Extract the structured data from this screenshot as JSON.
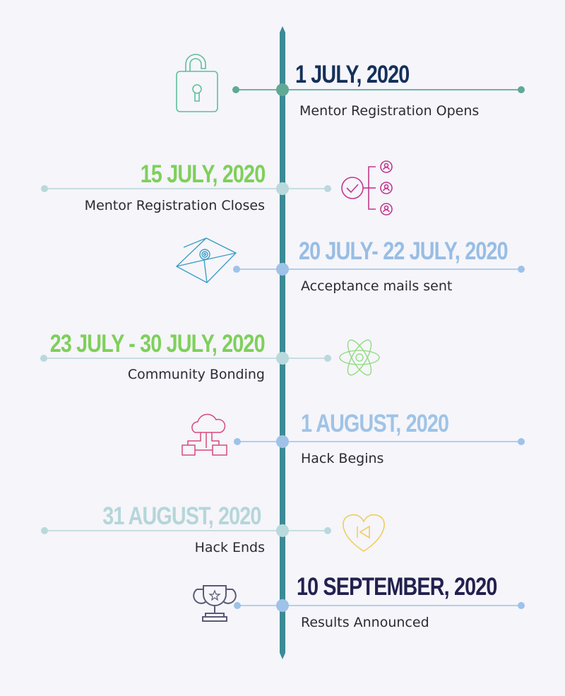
{
  "colors": {
    "axis": "#3b8b97",
    "background": "#f5f5fa"
  },
  "events": [
    {
      "date": "1 JULY, 2020",
      "label": "Mentor Registration Opens",
      "side": "right",
      "date_color": "#15305a",
      "line_color": "#6db3a6",
      "dot_color": "#5fa995",
      "icon": "unlocked-padlock-icon",
      "icon_color": "#5fbf98"
    },
    {
      "date": "15 JULY, 2020",
      "label": "Mentor Registration Closes",
      "side": "left",
      "date_color": "#7ed05a",
      "line_color": "#c8dde2",
      "dot_color": "#b9d9dc",
      "icon": "team-selection-icon",
      "icon_color": "#c2378d"
    },
    {
      "date": "20 JULY- 22 JULY, 2020",
      "label": "Acceptance mails sent",
      "side": "right",
      "date_color": "#98bde4",
      "line_color": "#b2cfea",
      "dot_color": "#9ec2e8",
      "icon": "envelope-icon",
      "icon_color": "#3d9fc4"
    },
    {
      "date": "23 JULY - 30 JULY, 2020",
      "label": "Community Bonding",
      "side": "left",
      "date_color": "#7ed05a",
      "line_color": "#c8dde2",
      "dot_color": "#b9d9dc",
      "icon": "atom-icon",
      "icon_color": "#8dd97a"
    },
    {
      "date": "1 AUGUST, 2020",
      "label": "Hack Begins",
      "side": "right",
      "date_color": "#9fc3e6",
      "line_color": "#b2cfea",
      "dot_color": "#9ec2e8",
      "icon": "cloud-network-icon",
      "icon_color": "#d94a7a"
    },
    {
      "date": "31 AUGUST, 2020",
      "label": "Hack Ends",
      "side": "left",
      "date_color": "#b5d6d9",
      "line_color": "#c8dde2",
      "dot_color": "#b9d9dc",
      "icon": "heart-rewind-icon",
      "icon_color": "#f0cb52"
    },
    {
      "date": "10 SEPTEMBER, 2020",
      "label": "Results Announced",
      "side": "right",
      "date_color": "#22214e",
      "line_color": "#b2cfea",
      "dot_color": "#9ec2e8",
      "icon": "trophy-icon",
      "icon_color": "#5a5a75"
    }
  ]
}
